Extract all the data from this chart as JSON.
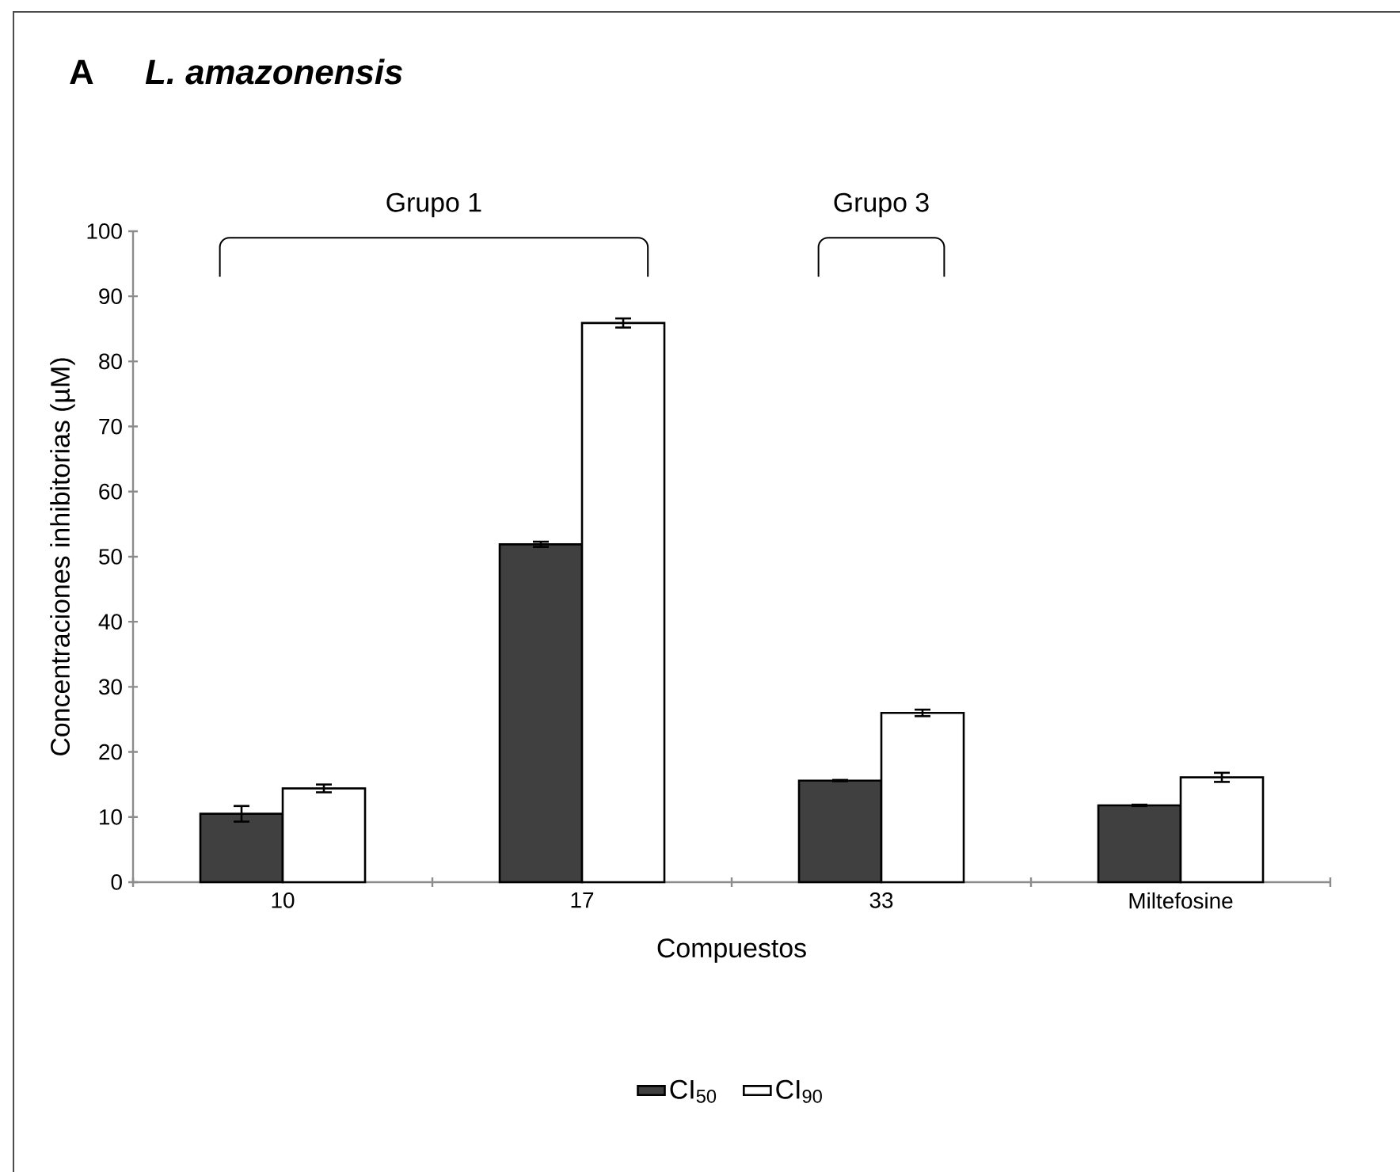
{
  "chart_data": {
    "type": "bar",
    "title": "A",
    "subtitle": "L. amazonensis",
    "xlabel": "Compuestos",
    "ylabel": "Concentraciones inhibitorias (µM)",
    "categories": [
      "10",
      "17",
      "33",
      "Miltefosine"
    ],
    "series": [
      {
        "name": "CI$_{50}$",
        "color": "#404040",
        "values": [
          10.5,
          51.9,
          15.6,
          11.8
        ],
        "errors": [
          1.2,
          0.4,
          0.1,
          0.1
        ]
      },
      {
        "name": "CI$_{90}$",
        "color": "#ffffff",
        "values": [
          14.4,
          85.9,
          26.0,
          16.1
        ],
        "errors": [
          0.6,
          0.7,
          0.5,
          0.7
        ]
      }
    ],
    "ylim": [
      0,
      100
    ],
    "yticks": [
      0,
      10,
      20,
      30,
      40,
      50,
      60,
      70,
      80,
      90,
      100
    ],
    "annotations": [
      "Grupo 1",
      "Grupo 3"
    ],
    "legend": "bottom",
    "grid": false
  }
}
